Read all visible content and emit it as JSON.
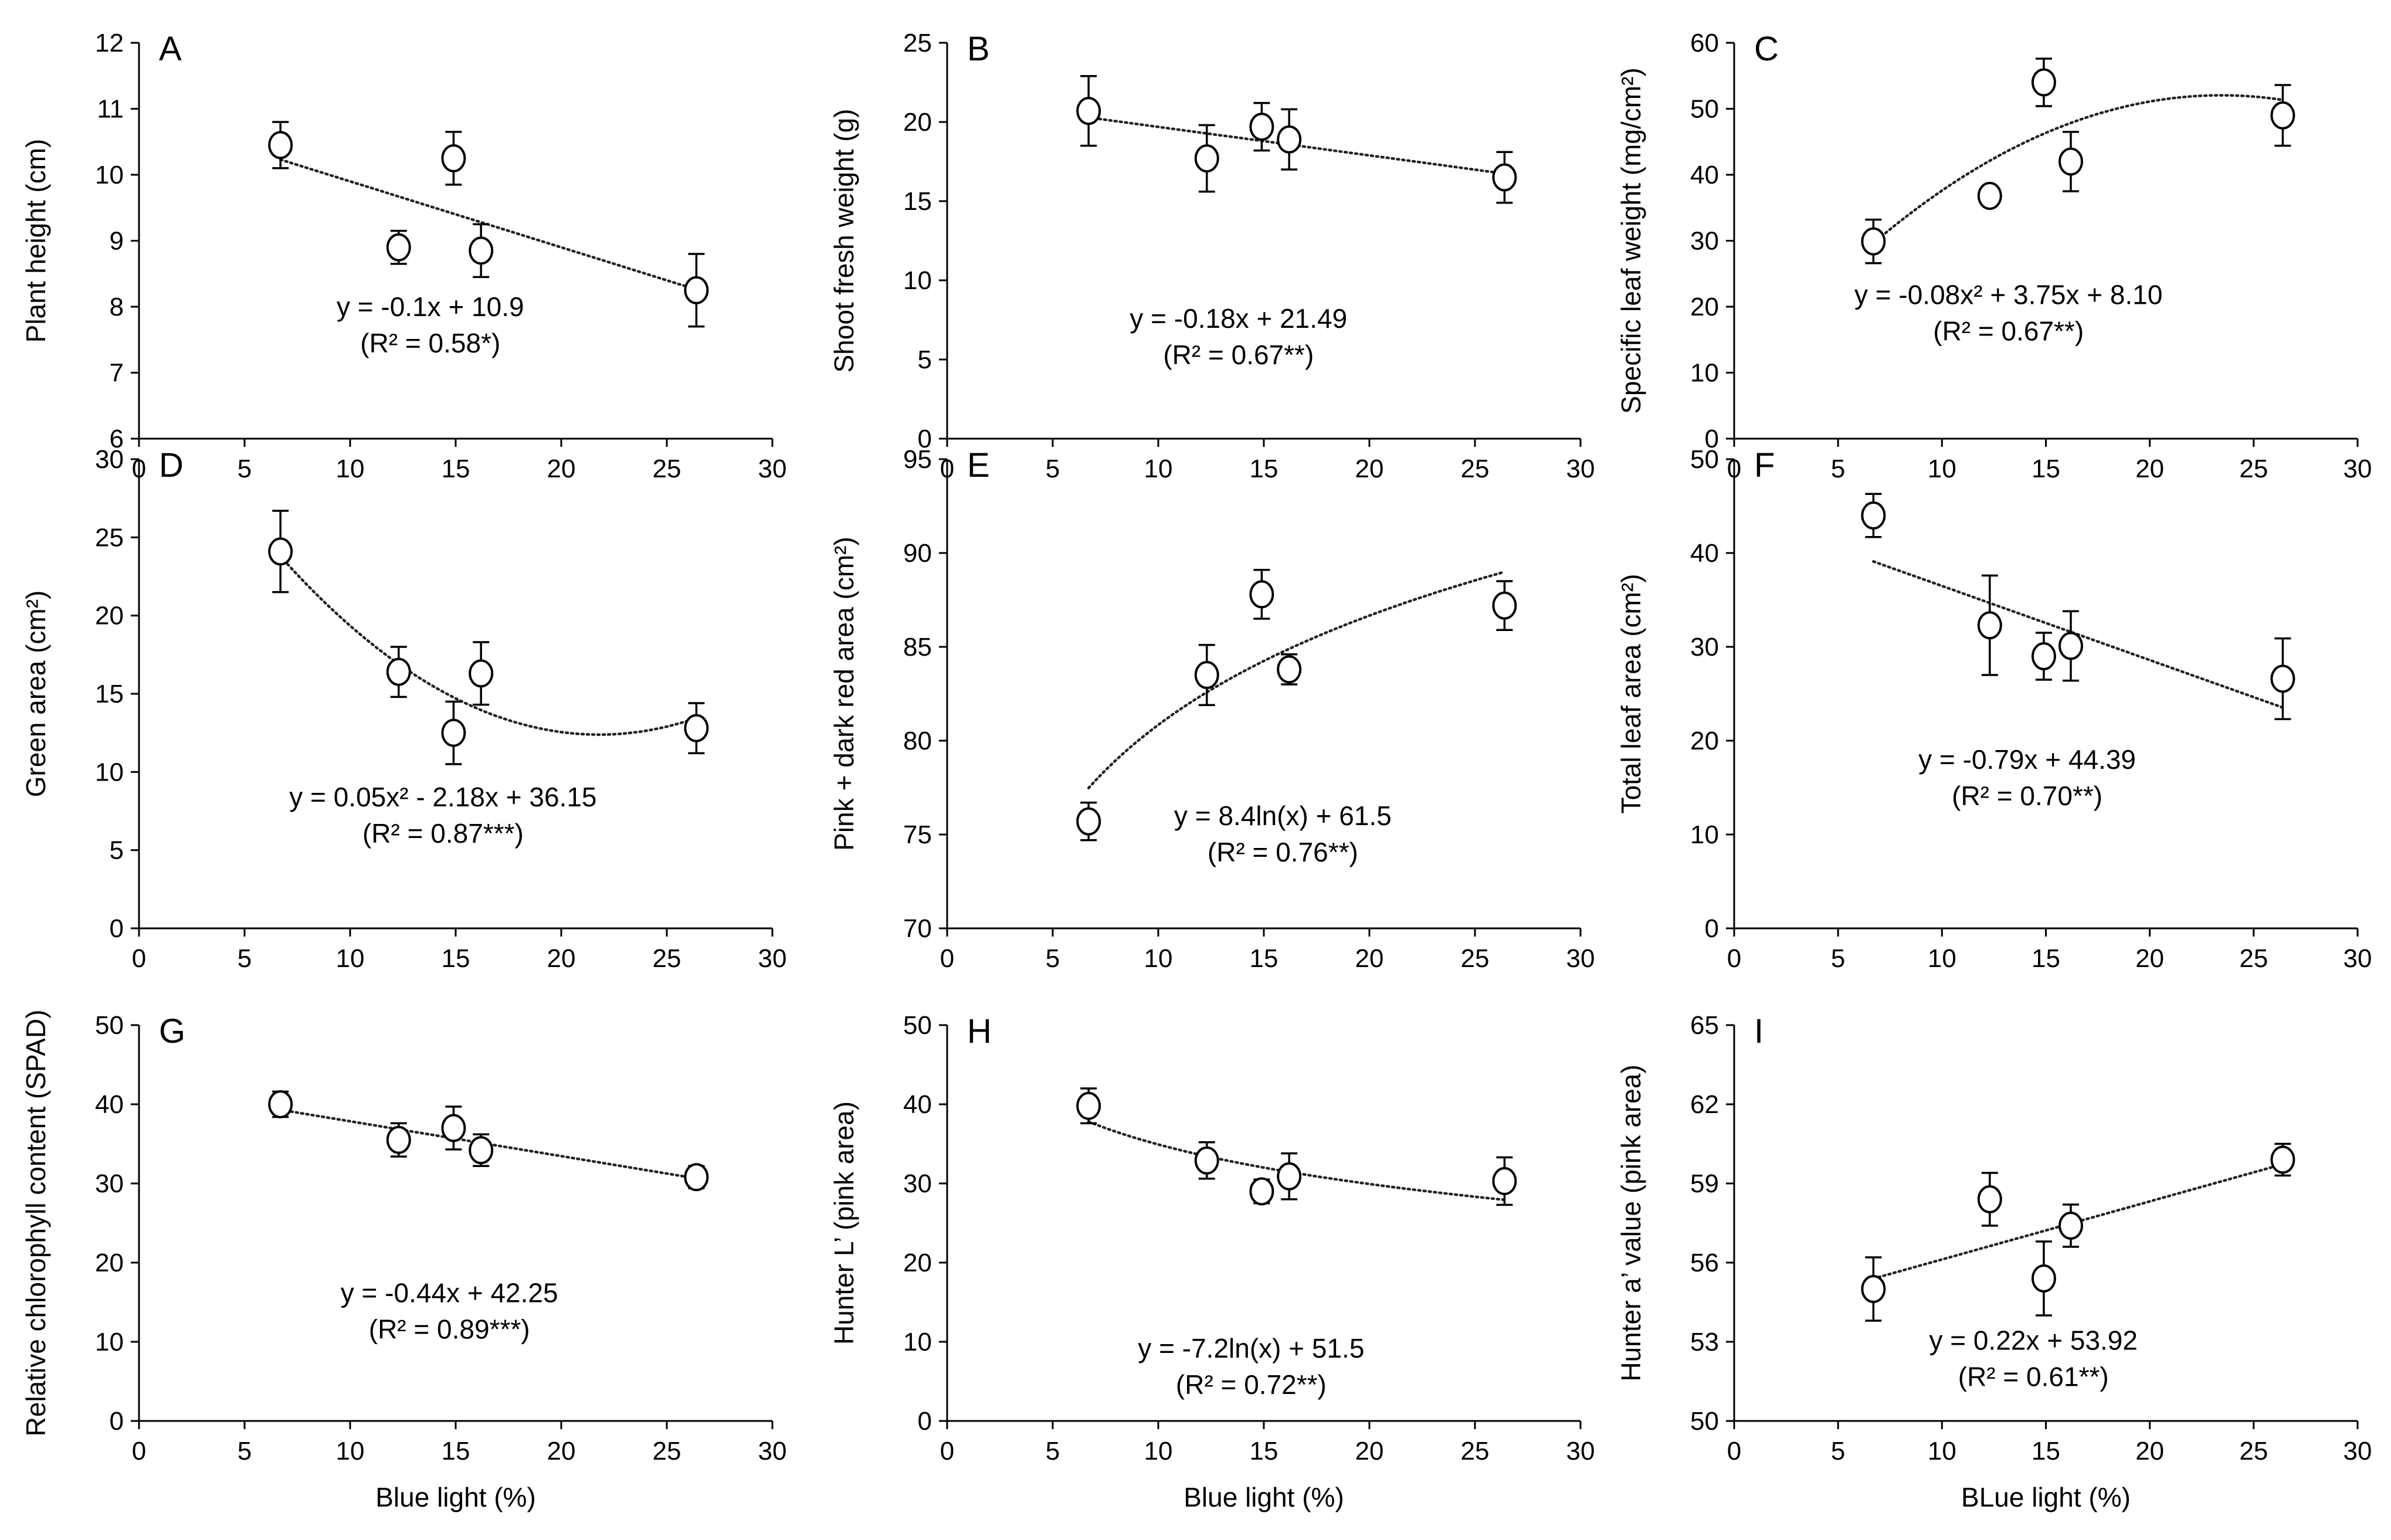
{
  "figure": {
    "description_panels": 9
  },
  "chart_data": [
    {
      "type": "scatter",
      "letter": "A",
      "ylabel": "Plant height (cm)",
      "xlabel": "",
      "xlim": [
        0,
        30
      ],
      "xticks": [
        0,
        5,
        10,
        15,
        20,
        25,
        30
      ],
      "ylim": [
        6,
        12
      ],
      "yticks": [
        6,
        7,
        8,
        9,
        10,
        11,
        12
      ],
      "points": [
        {
          "x": 6.7,
          "y": 10.45,
          "err": 0.35
        },
        {
          "x": 12.3,
          "y": 8.9,
          "err": 0.25
        },
        {
          "x": 14.9,
          "y": 10.25,
          "err": 0.4
        },
        {
          "x": 16.2,
          "y": 8.85,
          "err": 0.4
        },
        {
          "x": 26.4,
          "y": 8.25,
          "err": 0.55
        }
      ],
      "trend": {
        "kind": "linear",
        "a": -0.1,
        "b": 10.9,
        "xfrom": 6.7,
        "xto": 26.4
      },
      "equation": "y = -0.1x + 10.9",
      "r2_label": "(R² = 0.58*)"
    },
    {
      "type": "scatter",
      "letter": "B",
      "ylabel": "Shoot fresh weight (g)",
      "xlabel": "",
      "xlim": [
        0,
        30
      ],
      "xticks": [
        0,
        5,
        10,
        15,
        20,
        25,
        30
      ],
      "ylim": [
        0,
        25
      ],
      "yticks": [
        0,
        5,
        10,
        15,
        20,
        25
      ],
      "points": [
        {
          "x": 6.7,
          "y": 20.7,
          "err": 2.2
        },
        {
          "x": 12.3,
          "y": 17.7,
          "err": 2.1
        },
        {
          "x": 14.9,
          "y": 19.7,
          "err": 1.5
        },
        {
          "x": 16.2,
          "y": 18.9,
          "err": 1.9
        },
        {
          "x": 26.4,
          "y": 16.5,
          "err": 1.6
        }
      ],
      "trend": {
        "kind": "linear",
        "a": -0.18,
        "b": 21.49,
        "xfrom": 6.7,
        "xto": 26.4
      },
      "equation": "y = -0.18x + 21.49",
      "r2_label": "(R² = 0.67**)"
    },
    {
      "type": "scatter",
      "letter": "C",
      "ylabel": "Specific leaf weight (mg/cm²)",
      "xlabel": "",
      "xlim": [
        0,
        30
      ],
      "xticks": [
        0,
        5,
        10,
        15,
        20,
        25,
        30
      ],
      "ylim": [
        0,
        60
      ],
      "yticks": [
        0,
        10,
        20,
        30,
        40,
        50,
        60
      ],
      "points": [
        {
          "x": 6.7,
          "y": 29.9,
          "err": 3.3
        },
        {
          "x": 12.3,
          "y": 36.8,
          "err": 1.2
        },
        {
          "x": 14.9,
          "y": 54.0,
          "err": 3.6
        },
        {
          "x": 16.2,
          "y": 42.0,
          "err": 4.5
        },
        {
          "x": 26.4,
          "y": 49.0,
          "err": 4.6
        }
      ],
      "trend": {
        "kind": "quadratic",
        "a": -0.08,
        "b": 3.75,
        "c": 8.1,
        "xfrom": 6.7,
        "xto": 26.4
      },
      "equation": "y = -0.08x² + 3.75x + 8.10",
      "r2_label": "(R² = 0.67**)"
    },
    {
      "type": "scatter",
      "letter": "D",
      "ylabel": "Green area (cm²)",
      "xlabel": "",
      "xlim": [
        0,
        30
      ],
      "xticks": [
        0,
        5,
        10,
        15,
        20,
        25,
        30
      ],
      "ylim": [
        0,
        30
      ],
      "yticks": [
        0,
        5,
        10,
        15,
        20,
        25,
        30
      ],
      "points": [
        {
          "x": 6.7,
          "y": 24.1,
          "err": 2.6
        },
        {
          "x": 12.3,
          "y": 16.4,
          "err": 1.6
        },
        {
          "x": 14.9,
          "y": 12.5,
          "err": 2.0
        },
        {
          "x": 16.2,
          "y": 16.3,
          "err": 2.0
        },
        {
          "x": 26.4,
          "y": 12.8,
          "err": 1.6
        }
      ],
      "trend": {
        "kind": "quadratic",
        "a": 0.05,
        "b": -2.18,
        "c": 36.15,
        "xfrom": 6.7,
        "xto": 26.4
      },
      "equation": "y = 0.05x² - 2.18x + 36.15",
      "r2_label": "(R² = 0.87***)"
    },
    {
      "type": "scatter",
      "letter": "E",
      "ylabel": "Pink + dark red area (cm²)",
      "xlabel": "",
      "xlim": [
        0,
        30
      ],
      "xticks": [
        0,
        5,
        10,
        15,
        20,
        25,
        30
      ],
      "ylim": [
        70,
        95
      ],
      "yticks": [
        70,
        75,
        80,
        85,
        90,
        95
      ],
      "points": [
        {
          "x": 6.7,
          "y": 75.7,
          "err": 1.0
        },
        {
          "x": 12.3,
          "y": 83.5,
          "err": 1.6
        },
        {
          "x": 14.9,
          "y": 87.8,
          "err": 1.3
        },
        {
          "x": 16.2,
          "y": 83.8,
          "err": 0.8
        },
        {
          "x": 26.4,
          "y": 87.2,
          "err": 1.3
        }
      ],
      "trend": {
        "kind": "log",
        "a": 8.4,
        "b": 61.5,
        "xfrom": 6.7,
        "xto": 26.4
      },
      "equation": "y = 8.4ln(x) + 61.5",
      "r2_label": "(R² = 0.76**)"
    },
    {
      "type": "scatter",
      "letter": "F",
      "ylabel": "Total leaf area (cm²)",
      "xlabel": "",
      "xlim": [
        0,
        30
      ],
      "xticks": [
        0,
        5,
        10,
        15,
        20,
        25,
        30
      ],
      "ylim": [
        0,
        50
      ],
      "yticks": [
        0,
        10,
        20,
        30,
        40,
        50
      ],
      "points": [
        {
          "x": 6.7,
          "y": 44.0,
          "err": 2.3
        },
        {
          "x": 12.3,
          "y": 32.3,
          "err": 5.3
        },
        {
          "x": 14.9,
          "y": 29.0,
          "err": 2.5
        },
        {
          "x": 16.2,
          "y": 30.1,
          "err": 3.7
        },
        {
          "x": 26.4,
          "y": 26.6,
          "err": 4.3
        }
      ],
      "trend": {
        "kind": "linear",
        "a": -0.79,
        "b": 44.39,
        "xfrom": 6.7,
        "xto": 26.4
      },
      "equation": "y = -0.79x + 44.39",
      "r2_label": "(R² = 0.70**)"
    },
    {
      "type": "scatter",
      "letter": "G",
      "ylabel": "Relative chlorophyll content (SPAD)",
      "xlabel": "Blue light (%)",
      "xlim": [
        0,
        30
      ],
      "xticks": [
        0,
        5,
        10,
        15,
        20,
        25,
        30
      ],
      "ylim": [
        0,
        50
      ],
      "yticks": [
        0,
        10,
        20,
        30,
        40,
        50
      ],
      "points": [
        {
          "x": 6.7,
          "y": 40.0,
          "err": 1.6
        },
        {
          "x": 12.3,
          "y": 35.5,
          "err": 2.1
        },
        {
          "x": 14.9,
          "y": 37.0,
          "err": 2.7
        },
        {
          "x": 16.2,
          "y": 34.2,
          "err": 2.0
        },
        {
          "x": 26.4,
          "y": 30.8,
          "err": 1.4
        }
      ],
      "trend": {
        "kind": "linear",
        "a": -0.44,
        "b": 42.25,
        "xfrom": 6.7,
        "xto": 26.4
      },
      "equation": "y = -0.44x + 42.25",
      "r2_label": "(R² = 0.89***)"
    },
    {
      "type": "scatter",
      "letter": "H",
      "ylabel": "Hunter L’ (pink area)",
      "xlabel": "Blue light (%)",
      "xlim": [
        0,
        30
      ],
      "xticks": [
        0,
        5,
        10,
        15,
        20,
        25,
        30
      ],
      "ylim": [
        0,
        50
      ],
      "yticks": [
        0,
        10,
        20,
        30,
        40,
        50
      ],
      "points": [
        {
          "x": 6.7,
          "y": 39.8,
          "err": 2.2
        },
        {
          "x": 12.3,
          "y": 32.9,
          "err": 2.3
        },
        {
          "x": 14.9,
          "y": 29.0,
          "err": 1.5
        },
        {
          "x": 16.2,
          "y": 30.9,
          "err": 2.9
        },
        {
          "x": 26.4,
          "y": 30.3,
          "err": 3.0
        }
      ],
      "trend": {
        "kind": "log",
        "a": -7.2,
        "b": 51.5,
        "xfrom": 6.7,
        "xto": 26.4
      },
      "equation": "y = -7.2ln(x) + 51.5",
      "r2_label": "(R² = 0.72**)"
    },
    {
      "type": "scatter",
      "letter": "I",
      "ylabel": "Hunter a’ value (pink area)",
      "xlabel": "BLue light (%)",
      "xlim": [
        0,
        30
      ],
      "xticks": [
        0,
        5,
        10,
        15,
        20,
        25,
        30
      ],
      "ylim": [
        50,
        65
      ],
      "yticks": [
        50,
        53,
        56,
        59,
        62,
        65
      ],
      "points": [
        {
          "x": 6.7,
          "y": 55.0,
          "err": 1.2
        },
        {
          "x": 12.3,
          "y": 58.4,
          "err": 1.0
        },
        {
          "x": 14.9,
          "y": 55.4,
          "err": 1.4
        },
        {
          "x": 16.2,
          "y": 57.4,
          "err": 0.8
        },
        {
          "x": 26.4,
          "y": 59.9,
          "err": 0.6
        }
      ],
      "trend": {
        "kind": "linear",
        "a": 0.22,
        "b": 53.92,
        "xfrom": 6.7,
        "xto": 26.4
      },
      "equation": "y = 0.22x + 53.92",
      "r2_label": "(R² = 0.61**)"
    }
  ]
}
